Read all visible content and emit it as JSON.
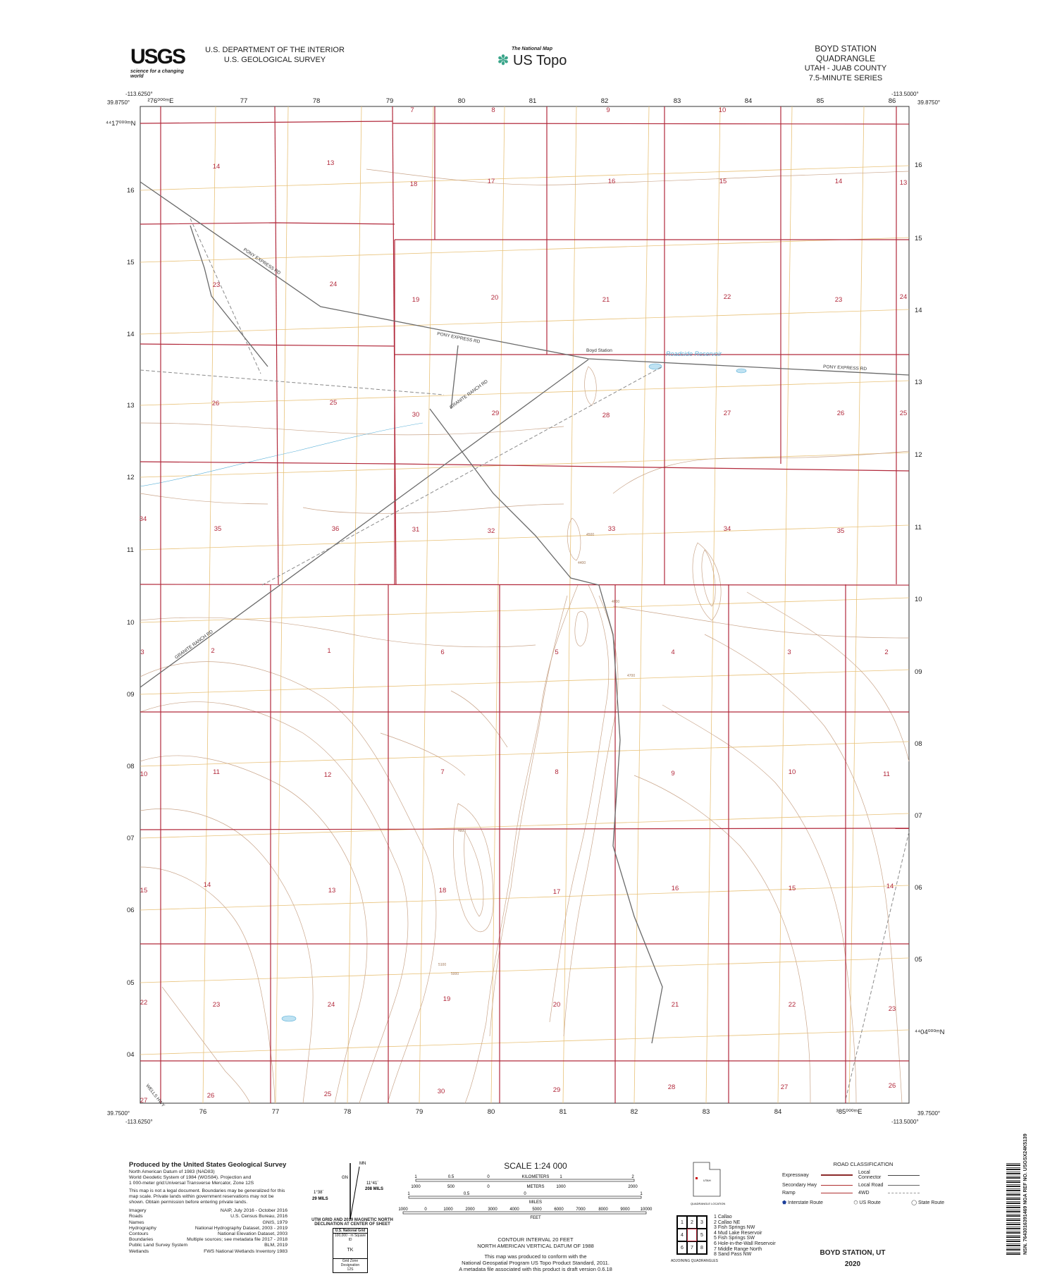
{
  "header": {
    "agency_logo_text": "USGS",
    "agency_tagline": "science for a changing world",
    "department": "U.S. DEPARTMENT OF THE INTERIOR",
    "survey": "U.S. GEOLOGICAL SURVEY",
    "national_map_label": "The National Map",
    "us_topo_label": "US Topo",
    "quad_title": "BOYD STATION QUADRANGLE",
    "state_county": "UTAH - JUAB COUNTY",
    "series": "7.5-MINUTE SERIES"
  },
  "map": {
    "corners": {
      "nw_lon": "-113.6250°",
      "nw_lat": "39.8750°",
      "ne_lon": "-113.5000°",
      "ne_lat": "39.8750°",
      "sw_lon": "-113.6250°",
      "sw_lat": "39.7500°",
      "se_lon": "-113.5000°",
      "se_lat": "39.7500°"
    },
    "top_easting_labels": [
      "²76⁰⁰⁰ᵐE",
      "77",
      "78",
      "79",
      "80",
      "81",
      "82",
      "83",
      "84",
      "85",
      "86"
    ],
    "bottom_easting_labels": [
      "76",
      "77",
      "78",
      "79",
      "80",
      "81",
      "82",
      "83",
      "84",
      "³85⁰⁰⁰ᵐE"
    ],
    "left_northing_labels": [
      "⁴⁴17⁰⁰⁰ᵐN",
      "16",
      "15",
      "14",
      "13",
      "12",
      "11",
      "10",
      "09",
      "08",
      "07",
      "06",
      "05",
      "04"
    ],
    "right_northing_labels": [
      "16",
      "15",
      "14",
      "13",
      "12",
      "11",
      "10",
      "09",
      "08",
      "07",
      "06",
      "05",
      "⁴⁴04⁰⁰⁰ᵐN"
    ],
    "sections": [
      "7",
      "8",
      "9",
      "10",
      "14",
      "13",
      "18",
      "17",
      "16",
      "15",
      "14",
      "13",
      "23",
      "24",
      "19",
      "20",
      "21",
      "22",
      "23",
      "24",
      "26",
      "25",
      "30",
      "29",
      "28",
      "27",
      "26",
      "25",
      "34",
      "35",
      "36",
      "31",
      "32",
      "33",
      "34",
      "35",
      "3",
      "2",
      "1",
      "6",
      "5",
      "4",
      "3",
      "2",
      "10",
      "11",
      "12",
      "7",
      "8",
      "9",
      "10",
      "11",
      "15",
      "14",
      "13",
      "18",
      "17",
      "16",
      "15",
      "14",
      "22",
      "23",
      "24",
      "19",
      "20",
      "21",
      "22",
      "23",
      "27",
      "26",
      "25",
      "30",
      "29",
      "28",
      "27",
      "26"
    ],
    "place_labels": {
      "boyd_station": "Boyd Station",
      "reservoir": "Roadside Reservoir",
      "pony_express_rd": "PONY EXPRESS RD",
      "granite_ranch_rd": "GRANITE RANCH RD",
      "wells_hwy": "WELLS HWY"
    },
    "contour_labels": [
      "4400",
      "4500",
      "4600",
      "4700",
      "4800",
      "5000",
      "5100"
    ],
    "colors": {
      "section_line": "#b22a3c",
      "grid_line": "#e8c27a",
      "contour": "#c9a58a",
      "road": "#6a6a6a",
      "water": "#5ab0d8"
    }
  },
  "credits": {
    "title": "Produced by the United States Geological Survey",
    "datum_lines": [
      "North American Datum of 1983 (NAD83)",
      "World Geodetic System of 1984 (WGS84). Projection and",
      "1 000-meter grid:Universal Transverse Mercator, Zone 12S"
    ],
    "disclaimer": "This map is not a legal document. Boundaries may be generalized for this map scale. Private lands within government reservations may not be shown. Obtain permission before entering private lands.",
    "sources": [
      {
        "name": "Imagery",
        "source": "NAIP, July 2016 - October 2016"
      },
      {
        "name": "Roads",
        "source": "U.S. Census Bureau, 2016"
      },
      {
        "name": "Names",
        "source": "GNIS, 1979"
      },
      {
        "name": "Hydrography",
        "source": "National Hydrography Dataset, 2003 - 2019"
      },
      {
        "name": "Contours",
        "source": "National Elevation Dataset, 2003"
      },
      {
        "name": "Boundaries",
        "source": "Multiple sources; see metadata file 2017 - 2018"
      },
      {
        "name": "Public Land Survey System",
        "source": "BLM, 2019"
      },
      {
        "name": "Wetlands",
        "source": "FWS National Wetlands Inventory 1983"
      }
    ]
  },
  "declination": {
    "mn_label": "MN",
    "gn_label": "GN",
    "left_angle": "1°38´",
    "left_mils": "29 MILS",
    "right_angle": "11°41´",
    "right_mils": "208 MILS",
    "caption": "UTM GRID AND 2019 MAGNETIC NORTH DECLINATION AT CENTER OF SHEET",
    "grid_box_title": "U.S. National Grid",
    "grid_box_sub": "100,000 - m Square ID",
    "square_id": "TK",
    "gzd_label": "Grid Zone Designation",
    "gzd": "12S"
  },
  "scale": {
    "title": "SCALE 1:24 000",
    "km_ticks": [
      "1",
      "0.5",
      "0",
      "1",
      "2"
    ],
    "km_label": "KILOMETERS",
    "m_ticks": [
      "1000",
      "500",
      "0",
      "1000",
      "2000"
    ],
    "m_label": "METERS",
    "mi_ticks": [
      "1",
      "0.5",
      "0",
      "1"
    ],
    "mi_label": "MILES",
    "ft_ticks": [
      "1000",
      "0",
      "1000",
      "2000",
      "3000",
      "4000",
      "5000",
      "6000",
      "7000",
      "8000",
      "9000",
      "10000"
    ],
    "ft_label": "FEET",
    "contour_interval": "CONTOUR INTERVAL 20 FEET",
    "vertical_datum": "NORTH AMERICAN VERTICAL DATUM OF 1988",
    "conform_lines": [
      "This map was produced to conform with the",
      "National Geospatial Program US Topo Product Standard, 2011.",
      "A metadata file associated with this product is draft version 0.6.18"
    ]
  },
  "location": {
    "state": "UTAH",
    "caption": "QUADRANGLE LOCATION"
  },
  "adjoining": {
    "caption": "ADJOINING QUADRANGLES",
    "cells": [
      "1",
      "2",
      "3",
      "4",
      "",
      "5",
      "6",
      "7",
      "8"
    ],
    "list": [
      "1 Callao",
      "2 Callao NE",
      "3 Fish Springs NW",
      "4 Mud Lake Reservoir",
      "5 Fish Springs SW",
      "6 Hole-in-the-Wall Reservoir",
      "7 Middle Range North",
      "8 Sand Pass NW"
    ]
  },
  "road_classification": {
    "title": "ROAD CLASSIFICATION",
    "items": [
      "Expressway",
      "Secondary Hwy",
      "Ramp",
      "Local Connector",
      "Local Road",
      "4WD"
    ],
    "shields": [
      "Interstate Route",
      "US Route",
      "State Route"
    ]
  },
  "footer": {
    "name": "BOYD STATION,  UT",
    "year": "2020"
  },
  "barcode": {
    "text": "NSN. 7643016391469  NGA REF NO. USGSX24K5139"
  }
}
